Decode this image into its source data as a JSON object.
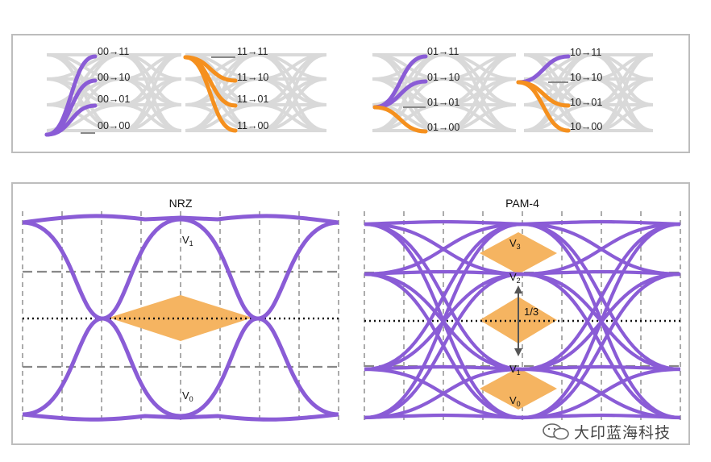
{
  "top_transitions": {
    "group_a": [
      "00→11",
      "00→10",
      "00→01",
      "00→00"
    ],
    "group_b": [
      "11→11",
      "11→10",
      "11→01",
      "11→00"
    ],
    "group_c": [
      "01→11",
      "01→10",
      "01→01",
      "01→00"
    ],
    "group_d": [
      "10→11",
      "10→10",
      "10→01",
      "10→00"
    ]
  },
  "nrz": {
    "title": "NRZ",
    "v1_base": "V",
    "v1_sub": "1",
    "v0_base": "V",
    "v0_sub": "0"
  },
  "pam4": {
    "title": "PAM-4",
    "v3_base": "V",
    "v3_sub": "3",
    "v2_base": "V",
    "v2_sub": "2",
    "v1_base": "V",
    "v1_sub": "1",
    "v0_base": "V",
    "v0_sub": "0",
    "ratio": "1/3"
  },
  "watermark": "大印蓝海科技",
  "colors": {
    "purple": "#8a5cd6",
    "orange": "#f5901e",
    "eye_fill": "#f5b461",
    "grey": "#d9d9d9",
    "frame": "#bdbdbd"
  }
}
